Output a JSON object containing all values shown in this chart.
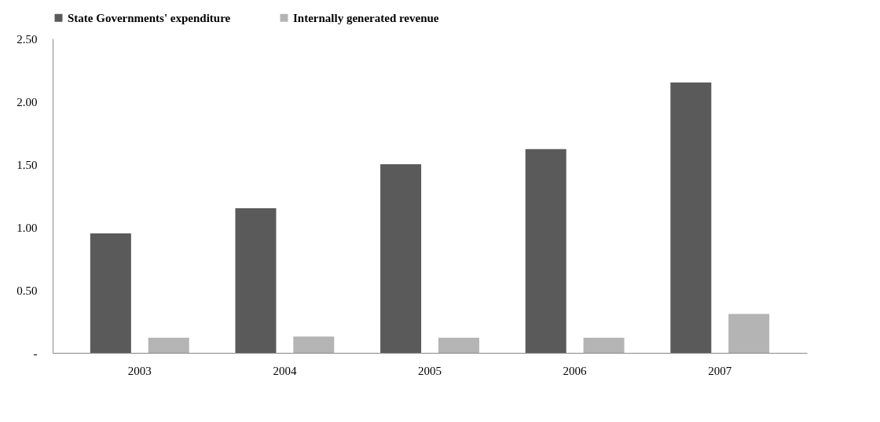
{
  "chart_data": {
    "type": "bar",
    "categories": [
      "2003",
      "2004",
      "2005",
      "2006",
      "2007"
    ],
    "series": [
      {
        "name": "State Governments' expenditure",
        "color": "#5a5a5a",
        "values": [
          0.95,
          1.15,
          1.5,
          1.62,
          2.15
        ]
      },
      {
        "name": "Internally generated revenue",
        "color": "#b4b4b4",
        "values": [
          0.12,
          0.13,
          0.12,
          0.12,
          0.31
        ]
      }
    ],
    "ylim": [
      0,
      2.5
    ],
    "yticks": [
      {
        "value": 0,
        "label": "-"
      },
      {
        "value": 0.5,
        "label": "0.50"
      },
      {
        "value": 1,
        "label": "1.00"
      },
      {
        "value": 1.5,
        "label": "1.50"
      },
      {
        "value": 2,
        "label": "2.00"
      },
      {
        "value": 2.5,
        "label": "2.50"
      }
    ],
    "grid": false,
    "legend": "top"
  }
}
